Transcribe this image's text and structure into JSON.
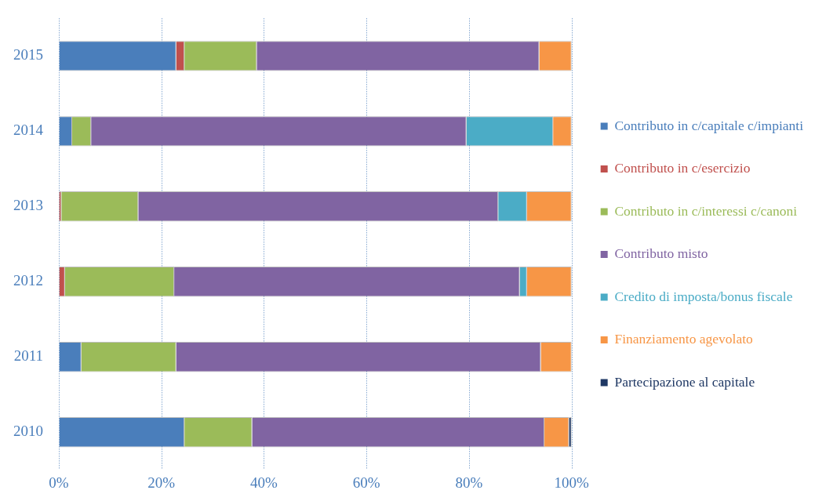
{
  "chart_data": {
    "type": "bar",
    "orientation": "horizontal",
    "stacked": true,
    "categories": [
      "2015",
      "2014",
      "2013",
      "2012",
      "2011",
      "2010"
    ],
    "series": [
      {
        "name": "Contributo in c/capitale c/impianti",
        "color": "#4a7ebb",
        "values": [
          22.9,
          2.6,
          0,
          0,
          4.4,
          24.5
        ]
      },
      {
        "name": "Contributo in c/esercizio",
        "color": "#c0504d",
        "values": [
          1.6,
          0,
          0.5,
          1.2,
          0,
          0
        ]
      },
      {
        "name": "Contributo in c/interessi c/canoni",
        "color": "#9bbb59",
        "values": [
          14.1,
          3.7,
          15.0,
          21.3,
          18.5,
          13.2
        ]
      },
      {
        "name": "Contributo misto",
        "color": "#8064a2",
        "values": [
          55.1,
          73.2,
          70.2,
          67.4,
          71.1,
          57.0
        ]
      },
      {
        "name": "Credito di imposta/bonus fiscale",
        "color": "#4bacc6",
        "values": [
          0,
          16.9,
          5.6,
          1.4,
          0,
          0
        ]
      },
      {
        "name": "Finanziamento agevolato",
        "color": "#f79646",
        "values": [
          6.3,
          3.6,
          8.7,
          8.7,
          6.0,
          4.8
        ]
      },
      {
        "name": "Partecipazione al capitale",
        "color": "#1f3864",
        "values": [
          0,
          0,
          0,
          0,
          0,
          0.5
        ]
      }
    ],
    "xlim": [
      0,
      100
    ],
    "xticks": [
      {
        "value": 0,
        "label": "0%"
      },
      {
        "value": 20,
        "label": "20%"
      },
      {
        "value": 40,
        "label": "40%"
      },
      {
        "value": 60,
        "label": "60%"
      },
      {
        "value": 80,
        "label": "80%"
      },
      {
        "value": 100,
        "label": "100%"
      }
    ],
    "grid": "x",
    "legend": "right"
  }
}
